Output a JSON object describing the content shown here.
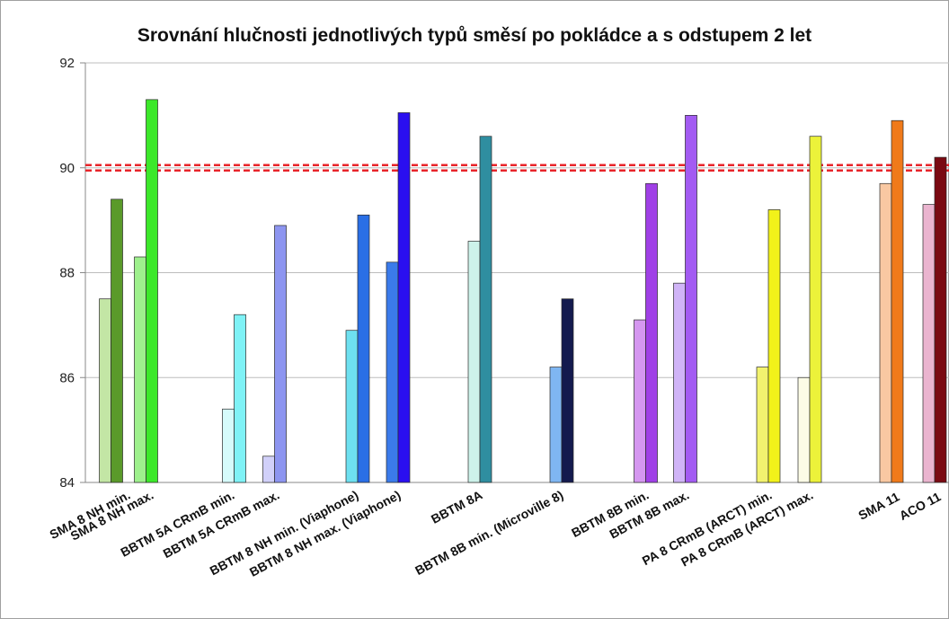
{
  "chart_data": {
    "type": "bar",
    "title": "Srovnání hlučnosti jednotlivých typů směsí po pokládce a s odstupem 2 let",
    "xlabel": "",
    "ylabel": "",
    "ylim": [
      84,
      92
    ],
    "yticks": [
      "84",
      "86",
      "88",
      "90",
      "92"
    ],
    "grid": true,
    "legend": "none",
    "bar_pairs_note": "each category shows two bars: after laying and after 2 years",
    "categories": [
      "SMA 8 NH min.",
      "SMA 8 NH max.",
      "BBTM 5A CRmB min.",
      "BBTM 5A CRmB max.",
      "BBTM 8 NH min. (Viaphone)",
      "BBTM 8 NH max. (Viaphone)",
      "BBTM 8A",
      "BBTM 8B  min. (Microville 8)",
      "BBTM 8B min.",
      "BBTM 8B max.",
      "PA 8 CRmB (ARCT) min.",
      "PA 8 CRmB (ARCT) max.",
      "SMA 11",
      "ACO 11"
    ],
    "series": [
      {
        "values": [
          87.5,
          88.3,
          85.4,
          84.5,
          86.9,
          88.2,
          88.6,
          86.2,
          87.1,
          87.8,
          86.2,
          86.0,
          89.7,
          89.3
        ]
      },
      {
        "values": [
          89.4,
          91.3,
          87.2,
          88.9,
          89.1,
          91.05,
          90.6,
          87.5,
          89.7,
          91.0,
          89.2,
          90.6,
          90.9,
          90.2
        ]
      }
    ],
    "colors": {
      "first": [
        "#c3e6a5",
        "#9ef08d",
        "#d6fbfb",
        "#d1d0f9",
        "#6ee0f0",
        "#3b7bea",
        "#cdf2ea",
        "#7fb6f2",
        "#d597f0",
        "#d0b4f7",
        "#f2f26f",
        "#fcfce6",
        "#f9c8a2",
        "#eab4cf"
      ],
      "second": [
        "#5a9a2a",
        "#3ce82a",
        "#7ff2f6",
        "#8d95f0",
        "#2a6fe6",
        "#2a0ff0",
        "#2f8ea0",
        "#141a4e",
        "#a040e6",
        "#a35bf2",
        "#f2f21a",
        "#ecf23a",
        "#f07a1a",
        "#7a0a12"
      ]
    },
    "reference_line": {
      "value": 90.0,
      "style": "red dashed double line"
    }
  }
}
